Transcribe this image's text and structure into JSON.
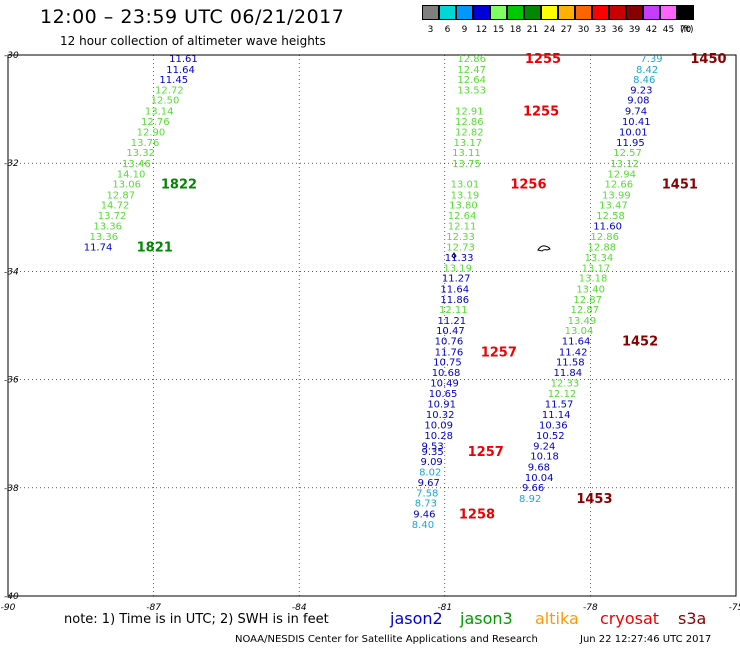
{
  "header": {
    "title": "12:00 – 23:59 UTC 06/21/2017",
    "subtitle": "12 hour collection of altimeter wave heights"
  },
  "colorbar": {
    "unit": "(ft)",
    "items": [
      {
        "label": "3",
        "color": "#7f7f7f"
      },
      {
        "label": "6",
        "color": "#00d8d8"
      },
      {
        "label": "9",
        "color": "#0098ff"
      },
      {
        "label": "12",
        "color": "#0000d8"
      },
      {
        "label": "15",
        "color": "#80ff60"
      },
      {
        "label": "18",
        "color": "#00c800"
      },
      {
        "label": "21",
        "color": "#008800"
      },
      {
        "label": "24",
        "color": "#ffff00"
      },
      {
        "label": "27",
        "color": "#ffb000"
      },
      {
        "label": "30",
        "color": "#ff6400"
      },
      {
        "label": "33",
        "color": "#ff0000"
      },
      {
        "label": "36",
        "color": "#c80000"
      },
      {
        "label": "39",
        "color": "#880000"
      },
      {
        "label": "42",
        "color": "#c83cff"
      },
      {
        "label": "45",
        "color": "#ff64ff"
      },
      {
        "label": "70",
        "color": "#000000"
      }
    ]
  },
  "map": {
    "lon_range": [
      -90,
      -75
    ],
    "lat_range": [
      -40,
      -30
    ],
    "grid": true,
    "lon_ticks": [
      "-90",
      "-87",
      "-84",
      "-81",
      "-78",
      "-75"
    ],
    "lat_ticks": [
      "-30",
      "-32",
      "-34",
      "-36",
      "-38",
      "-40"
    ],
    "colors": {
      "low": "#1aa7d6",
      "mid": "#0000c8",
      "high": "#55dd33",
      "time_green": "#008800",
      "time_red": "#ee0000",
      "time_dark": "#880000"
    }
  },
  "tracks": [
    {
      "name": "track-1",
      "observations": [
        {
          "v": "11.61",
          "lat": -30.13,
          "lon": -86.68,
          "c": "mid"
        },
        {
          "v": "11.64",
          "lat": -30.33,
          "lon": -86.74,
          "c": "mid"
        },
        {
          "v": "11.45",
          "lat": -30.52,
          "lon": -86.88,
          "c": "mid"
        },
        {
          "v": "12.72",
          "lat": -30.71,
          "lon": -86.97,
          "c": "high"
        },
        {
          "v": "12.50",
          "lat": -30.9,
          "lon": -87.06,
          "c": "high"
        },
        {
          "v": "13.14",
          "lat": -31.1,
          "lon": -87.18,
          "c": "high"
        },
        {
          "v": "12.76",
          "lat": -31.29,
          "lon": -87.26,
          "c": "high"
        },
        {
          "v": "12.90",
          "lat": -31.49,
          "lon": -87.35,
          "c": "high"
        },
        {
          "v": "13.76",
          "lat": -31.68,
          "lon": -87.47,
          "c": "high"
        },
        {
          "v": "13.32",
          "lat": -31.87,
          "lon": -87.56,
          "c": "high"
        },
        {
          "v": "13.46",
          "lat": -32.07,
          "lon": -87.65,
          "c": "high"
        },
        {
          "v": "14.10",
          "lat": -32.26,
          "lon": -87.76,
          "c": "high"
        },
        {
          "v": "13.06",
          "lat": -32.45,
          "lon": -87.85,
          "c": "high"
        },
        {
          "v": "12.87",
          "lat": -32.65,
          "lon": -87.97,
          "c": "high"
        },
        {
          "v": "14.72",
          "lat": -32.84,
          "lon": -88.09,
          "c": "high"
        },
        {
          "v": "13.72",
          "lat": -33.03,
          "lon": -88.15,
          "c": "high"
        },
        {
          "v": "13.36",
          "lat": -33.23,
          "lon": -88.24,
          "c": "high"
        },
        {
          "v": "13.36",
          "lat": -33.42,
          "lon": -88.32,
          "c": "high"
        },
        {
          "v": "11.74",
          "lat": -33.61,
          "lon": -88.44,
          "c": "mid"
        }
      ],
      "times": [
        {
          "t": "1822",
          "lat": -32.45,
          "lon": -86.85,
          "c": "time_green"
        },
        {
          "t": "1821",
          "lat": -33.61,
          "lon": -87.35,
          "c": "time_green"
        }
      ]
    },
    {
      "name": "track-2",
      "observations": [
        {
          "v": "12.86",
          "lat": -30.13,
          "lon": -80.74,
          "c": "high"
        },
        {
          "v": "12.47",
          "lat": -30.33,
          "lon": -80.74,
          "c": "high"
        },
        {
          "v": "12.64",
          "lat": -30.52,
          "lon": -80.74,
          "c": "high"
        },
        {
          "v": "13.53",
          "lat": -30.71,
          "lon": -80.74,
          "c": "high"
        },
        {
          "v": "12.91",
          "lat": -31.1,
          "lon": -80.79,
          "c": "high"
        },
        {
          "v": "12.86",
          "lat": -31.29,
          "lon": -80.79,
          "c": "high"
        },
        {
          "v": "12.82",
          "lat": -31.49,
          "lon": -80.79,
          "c": "high"
        },
        {
          "v": "13.17",
          "lat": -31.68,
          "lon": -80.82,
          "c": "high"
        },
        {
          "v": "13.11",
          "lat": -31.87,
          "lon": -80.85,
          "c": "high"
        },
        {
          "v": "13.75",
          "lat": -32.07,
          "lon": -80.85,
          "c": "high"
        },
        {
          "v": "13.01",
          "lat": -32.45,
          "lon": -80.88,
          "c": "high"
        },
        {
          "v": "13.19",
          "lat": -32.65,
          "lon": -80.88,
          "c": "high"
        },
        {
          "v": "13.80",
          "lat": -32.84,
          "lon": -80.91,
          "c": "high"
        },
        {
          "v": "12.64",
          "lat": -33.03,
          "lon": -80.94,
          "c": "high"
        },
        {
          "v": "12.11",
          "lat": -33.23,
          "lon": -80.94,
          "c": "high"
        },
        {
          "v": "12.33",
          "lat": -33.42,
          "lon": -80.97,
          "c": "high"
        },
        {
          "v": "12.73",
          "lat": -33.61,
          "lon": -80.97,
          "c": "high"
        },
        {
          "v": "11.33",
          "lat": -33.81,
          "lon": -81.0,
          "c": "mid"
        },
        {
          "v": "13.19",
          "lat": -34.0,
          "lon": -81.03,
          "c": "high"
        },
        {
          "v": "11.27",
          "lat": -34.19,
          "lon": -81.06,
          "c": "mid"
        },
        {
          "v": "11.64",
          "lat": -34.39,
          "lon": -81.09,
          "c": "mid"
        },
        {
          "v": "11.86",
          "lat": -34.58,
          "lon": -81.09,
          "c": "mid"
        },
        {
          "v": "12.11",
          "lat": -34.77,
          "lon": -81.12,
          "c": "high"
        },
        {
          "v": "11.21",
          "lat": -34.97,
          "lon": -81.15,
          "c": "mid"
        },
        {
          "v": "10.47",
          "lat": -35.16,
          "lon": -81.18,
          "c": "mid"
        },
        {
          "v": "10.76",
          "lat": -35.35,
          "lon": -81.21,
          "c": "mid"
        },
        {
          "v": "11.76",
          "lat": -35.55,
          "lon": -81.21,
          "c": "mid"
        },
        {
          "v": "10.75",
          "lat": -35.74,
          "lon": -81.24,
          "c": "mid"
        },
        {
          "v": "10.68",
          "lat": -35.93,
          "lon": -81.27,
          "c": "mid"
        },
        {
          "v": "10.49",
          "lat": -36.13,
          "lon": -81.3,
          "c": "mid"
        },
        {
          "v": "10.65",
          "lat": -36.32,
          "lon": -81.33,
          "c": "mid"
        },
        {
          "v": "10.91",
          "lat": -36.52,
          "lon": -81.36,
          "c": "mid"
        },
        {
          "v": "10.32",
          "lat": -36.71,
          "lon": -81.39,
          "c": "mid"
        },
        {
          "v": "10.09",
          "lat": -36.9,
          "lon": -81.42,
          "c": "mid"
        },
        {
          "v": "10.28",
          "lat": -37.1,
          "lon": -81.42,
          "c": "mid"
        },
        {
          "v": "9.53",
          "lat": -37.29,
          "lon": -81.48,
          "c": "mid"
        },
        {
          "v": "9.35",
          "lat": -37.39,
          "lon": -81.48,
          "c": "mid"
        },
        {
          "v": "9.09",
          "lat": -37.58,
          "lon": -81.5,
          "c": "mid"
        },
        {
          "v": "8.02",
          "lat": -37.77,
          "lon": -81.53,
          "c": "low"
        },
        {
          "v": "9.67",
          "lat": -37.97,
          "lon": -81.56,
          "c": "mid"
        },
        {
          "v": "7.58",
          "lat": -38.16,
          "lon": -81.59,
          "c": "low"
        },
        {
          "v": "8.73",
          "lat": -38.35,
          "lon": -81.62,
          "c": "low"
        },
        {
          "v": "9.46",
          "lat": -38.55,
          "lon": -81.65,
          "c": "mid"
        },
        {
          "v": "8.40",
          "lat": -38.74,
          "lon": -81.68,
          "c": "low"
        }
      ],
      "times": [
        {
          "t": "1255",
          "lat": -30.13,
          "lon": -79.35,
          "c": "time_red"
        },
        {
          "t": "1255",
          "lat": -31.1,
          "lon": -79.39,
          "c": "time_red"
        },
        {
          "t": "1256",
          "lat": -32.45,
          "lon": -79.65,
          "c": "time_red"
        },
        {
          "t": "1257",
          "lat": -35.55,
          "lon": -80.26,
          "c": "time_red"
        },
        {
          "t": "1257",
          "lat": -37.39,
          "lon": -80.53,
          "c": "time_red"
        },
        {
          "t": "1258",
          "lat": -38.55,
          "lon": -80.71,
          "c": "time_red"
        }
      ]
    },
    {
      "name": "track-3",
      "observations": [
        {
          "v": "7.39",
          "lat": -30.13,
          "lon": -76.97,
          "c": "low"
        },
        {
          "v": "8.42",
          "lat": -30.33,
          "lon": -77.06,
          "c": "low"
        },
        {
          "v": "8.46",
          "lat": -30.52,
          "lon": -77.12,
          "c": "low"
        },
        {
          "v": "9.23",
          "lat": -30.71,
          "lon": -77.18,
          "c": "mid"
        },
        {
          "v": "9.08",
          "lat": -30.9,
          "lon": -77.24,
          "c": "mid"
        },
        {
          "v": "9.74",
          "lat": -31.1,
          "lon": -77.29,
          "c": "mid"
        },
        {
          "v": "10.41",
          "lat": -31.29,
          "lon": -77.35,
          "c": "mid"
        },
        {
          "v": "10.01",
          "lat": -31.49,
          "lon": -77.41,
          "c": "mid"
        },
        {
          "v": "11.95",
          "lat": -31.68,
          "lon": -77.47,
          "c": "mid"
        },
        {
          "v": "12.57",
          "lat": -31.87,
          "lon": -77.53,
          "c": "high"
        },
        {
          "v": "13.12",
          "lat": -32.07,
          "lon": -77.59,
          "c": "high"
        },
        {
          "v": "12.94",
          "lat": -32.26,
          "lon": -77.65,
          "c": "high"
        },
        {
          "v": "12.66",
          "lat": -32.45,
          "lon": -77.71,
          "c": "high"
        },
        {
          "v": "13.99",
          "lat": -32.65,
          "lon": -77.76,
          "c": "high"
        },
        {
          "v": "13.47",
          "lat": -32.84,
          "lon": -77.82,
          "c": "high"
        },
        {
          "v": "12.58",
          "lat": -33.03,
          "lon": -77.88,
          "c": "high"
        },
        {
          "v": "11.60",
          "lat": -33.23,
          "lon": -77.94,
          "c": "mid"
        },
        {
          "v": "12.86",
          "lat": -33.42,
          "lon": -78.0,
          "c": "high"
        },
        {
          "v": "12.88",
          "lat": -33.61,
          "lon": -78.06,
          "c": "high"
        },
        {
          "v": "13.34",
          "lat": -33.81,
          "lon": -78.12,
          "c": "high"
        },
        {
          "v": "13.17",
          "lat": -34.0,
          "lon": -78.18,
          "c": "high"
        },
        {
          "v": "13.18",
          "lat": -34.19,
          "lon": -78.24,
          "c": "high"
        },
        {
          "v": "13.40",
          "lat": -34.39,
          "lon": -78.29,
          "c": "high"
        },
        {
          "v": "12.87",
          "lat": -34.58,
          "lon": -78.35,
          "c": "high"
        },
        {
          "v": "12.87",
          "lat": -34.77,
          "lon": -78.41,
          "c": "high"
        },
        {
          "v": "13.49",
          "lat": -34.97,
          "lon": -78.47,
          "c": "high"
        },
        {
          "v": "13.04",
          "lat": -35.16,
          "lon": -78.53,
          "c": "high"
        },
        {
          "v": "11.64",
          "lat": -35.35,
          "lon": -78.59,
          "c": "mid"
        },
        {
          "v": "11.42",
          "lat": -35.55,
          "lon": -78.65,
          "c": "mid"
        },
        {
          "v": "11.58",
          "lat": -35.74,
          "lon": -78.71,
          "c": "mid"
        },
        {
          "v": "11.84",
          "lat": -35.93,
          "lon": -78.76,
          "c": "mid"
        },
        {
          "v": "12.33",
          "lat": -36.13,
          "lon": -78.82,
          "c": "high"
        },
        {
          "v": "12.12",
          "lat": -36.32,
          "lon": -78.88,
          "c": "high"
        },
        {
          "v": "11.57",
          "lat": -36.52,
          "lon": -78.94,
          "c": "mid"
        },
        {
          "v": "11.14",
          "lat": -36.71,
          "lon": -79.0,
          "c": "mid"
        },
        {
          "v": "10.36",
          "lat": -36.9,
          "lon": -79.06,
          "c": "mid"
        },
        {
          "v": "10.52",
          "lat": -37.1,
          "lon": -79.12,
          "c": "mid"
        },
        {
          "v": "9.24",
          "lat": -37.29,
          "lon": -79.18,
          "c": "mid"
        },
        {
          "v": "10.18",
          "lat": -37.48,
          "lon": -79.24,
          "c": "mid"
        },
        {
          "v": "9.68",
          "lat": -37.68,
          "lon": -79.29,
          "c": "mid"
        },
        {
          "v": "10.04",
          "lat": -37.87,
          "lon": -79.35,
          "c": "mid"
        },
        {
          "v": "9.66",
          "lat": -38.06,
          "lon": -79.41,
          "c": "mid"
        },
        {
          "v": "8.92",
          "lat": -38.26,
          "lon": -79.47,
          "c": "low"
        }
      ],
      "times": [
        {
          "t": "1450",
          "lat": -30.13,
          "lon": -75.94,
          "c": "time_dark"
        },
        {
          "t": "1451",
          "lat": -32.45,
          "lon": -76.53,
          "c": "time_dark"
        },
        {
          "t": "1452",
          "lat": -35.35,
          "lon": -77.35,
          "c": "time_dark"
        },
        {
          "t": "1453",
          "lat": -38.26,
          "lon": -78.29,
          "c": "time_dark"
        }
      ]
    }
  ],
  "footer": {
    "note": "note:  1) Time is in UTC;  2) SWH is in feet",
    "missions": [
      {
        "label": "jason2",
        "color": "#0000d8"
      },
      {
        "label": "jason3",
        "color": "#009900"
      },
      {
        "label": "altika",
        "color": "#ff9900"
      },
      {
        "label": "cryosat",
        "color": "#ee0000"
      },
      {
        "label": "s3a",
        "color": "#880000"
      }
    ],
    "credit": "NOAA/NESDIS Center for Satellite Applications and Research",
    "date": "Jun 22 12:27:46 UTC 2017"
  }
}
